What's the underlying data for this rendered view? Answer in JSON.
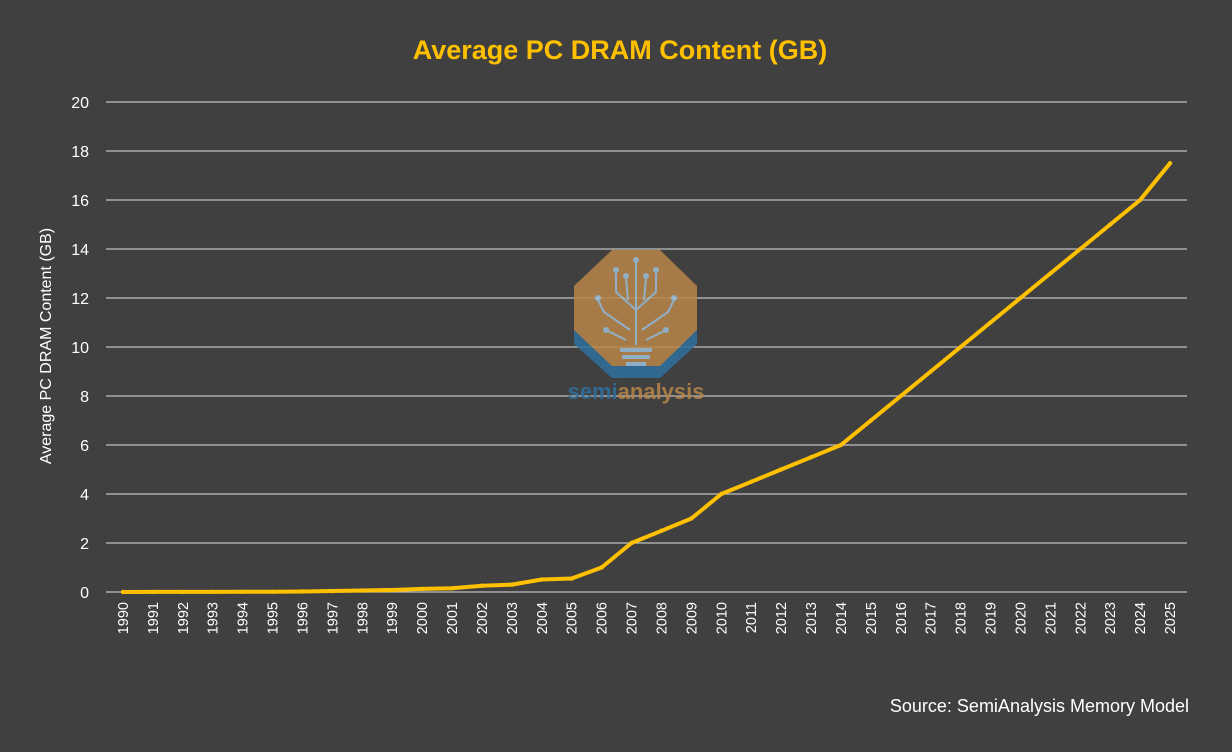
{
  "chart_data": {
    "type": "line",
    "title": "Average PC DRAM Content (GB)",
    "xlabel": "",
    "ylabel": "Average PC DRAM Content (GB)",
    "ylim": [
      0,
      20
    ],
    "yticks": [
      "0",
      "2",
      "4",
      "6",
      "8",
      "10",
      "12",
      "14",
      "16",
      "18",
      "20"
    ],
    "grid": true,
    "legend": "none",
    "categories": [
      "1990",
      "1991",
      "1992",
      "1993",
      "1994",
      "1995",
      "1996",
      "1997",
      "1998",
      "1999",
      "2000",
      "2001",
      "2002",
      "2003",
      "2004",
      "2005",
      "2006",
      "2007",
      "2008",
      "2009",
      "2010",
      "2011",
      "2012",
      "2013",
      "2014",
      "2015",
      "2016",
      "2017",
      "2018",
      "2019",
      "2020",
      "2021",
      "2022",
      "2023",
      "2024",
      "2025"
    ],
    "series": [
      {
        "name": "Average PC DRAM Content (GB)",
        "color": "#FFC000",
        "values": [
          0.002,
          0.003,
          0.004,
          0.006,
          0.008,
          0.012,
          0.02,
          0.04,
          0.06,
          0.08,
          0.128,
          0.15,
          0.256,
          0.3,
          0.512,
          0.55,
          1.0,
          2.0,
          2.5,
          3.0,
          4.0,
          4.5,
          5.0,
          5.5,
          6.0,
          7.0,
          8.0,
          9.0,
          10.0,
          11.0,
          12.0,
          13.0,
          14.0,
          15.0,
          16.0,
          17.5
        ]
      }
    ],
    "source": "Source: SemiAnalysis Memory Model"
  },
  "watermark": {
    "brand_part1": "semi",
    "brand_part2": "analysis"
  },
  "colors": {
    "background": "#404040",
    "title": "#FFC000",
    "line": "#FFC000",
    "grid": "#BFBFBF",
    "text": "#FFFFFF",
    "watermark_blue": "#2E6F9E",
    "watermark_orange": "#B8864A"
  }
}
